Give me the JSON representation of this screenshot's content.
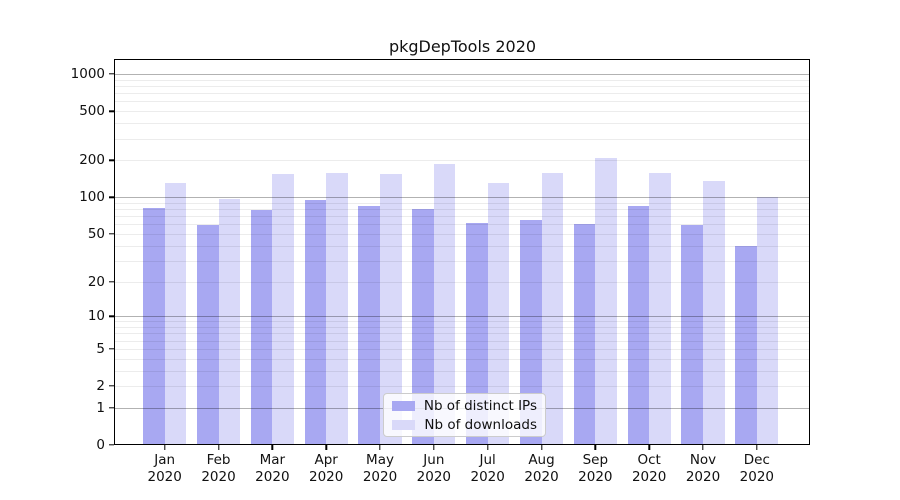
{
  "chart_data": {
    "type": "bar",
    "title": "pkgDepTools 2020",
    "categories": [
      "Jan",
      "Feb",
      "Mar",
      "Apr",
      "May",
      "Jun",
      "Jul",
      "Aug",
      "Sep",
      "Oct",
      "Nov",
      "Dec"
    ],
    "category_year": "2020",
    "series": [
      {
        "name": "Nb of distinct IPs",
        "color": "#a8a8f2",
        "values": [
          81,
          59,
          78,
          95,
          85,
          80,
          61,
          65,
          60,
          85,
          59,
          40
        ]
      },
      {
        "name": "Nb of downloads",
        "color": "#d9d9f9",
        "values": [
          130,
          96,
          154,
          157,
          155,
          185,
          130,
          156,
          210,
          156,
          135,
          101
        ]
      }
    ],
    "xlabel": "",
    "ylabel": "",
    "y_axis": {
      "scale": "log1p",
      "tick_values": [
        0,
        1,
        2,
        5,
        10,
        20,
        50,
        100,
        200,
        500,
        1000
      ],
      "tick_labels": [
        "0",
        "1",
        "2",
        "5",
        "10",
        "20",
        "50",
        "100",
        "200",
        "500",
        "1000"
      ],
      "top_value": 1000
    },
    "grid": "on",
    "legend_position": "inside-bottom-center"
  }
}
